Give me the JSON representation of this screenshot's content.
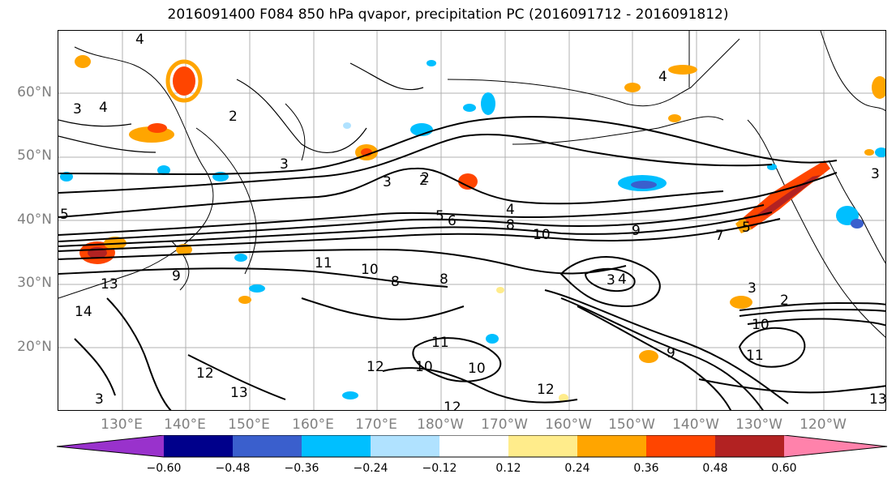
{
  "title": "2016091400 F084 850 hPa qvapor, precipitation PC (2016091712 - 2016091812)",
  "lat_labels": [
    "60°N",
    "50°N",
    "40°N",
    "30°N",
    "20°N"
  ],
  "lon_labels": [
    "130°E",
    "140°E",
    "150°E",
    "160°E",
    "170°E",
    "180°W",
    "170°W",
    "160°W",
    "150°W",
    "140°W",
    "130°W",
    "120°W"
  ],
  "colorbar": {
    "ticks": [
      "−0.60",
      "−0.48",
      "−0.36",
      "−0.24",
      "−0.12",
      "0.12",
      "0.24",
      "0.36",
      "0.48",
      "0.60"
    ],
    "colors": [
      "#9932cc",
      "#00008b",
      "#3a5fcd",
      "#00bfff",
      "#b0e2ff",
      "#ffffff",
      "#ffec8b",
      "#ffa500",
      "#ff4500",
      "#b22222",
      "#ff82ab"
    ]
  },
  "contour_labels": [
    "4",
    "3",
    "4",
    "2",
    "2",
    "3",
    "3",
    "2",
    "5",
    "6",
    "4",
    "8",
    "10",
    "9",
    "7",
    "5",
    "11",
    "10",
    "8",
    "8",
    "9",
    "5",
    "4",
    "3",
    "3",
    "13",
    "14",
    "12",
    "12",
    "10",
    "11",
    "10",
    "9",
    "12",
    "13",
    "3",
    "2",
    "11",
    "10",
    "12",
    "13",
    "4",
    "3"
  ]
}
